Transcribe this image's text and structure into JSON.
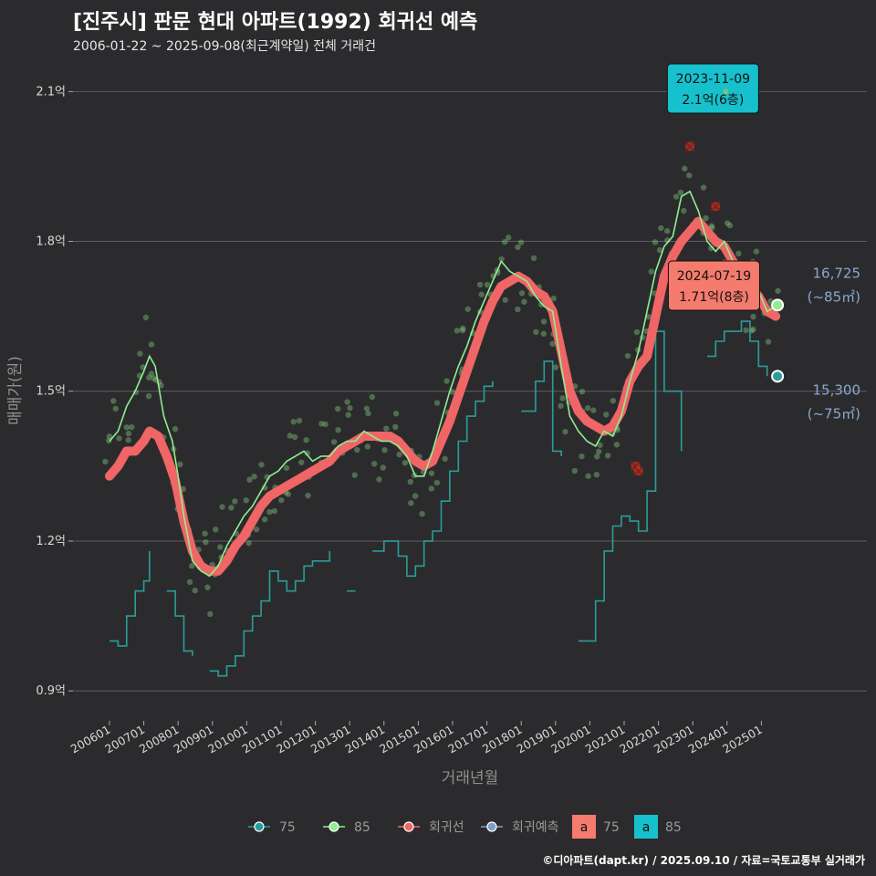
{
  "title": "[진주시] 판문 현대 아파트(1992) 회귀선 예측",
  "subtitle": "2006-01-22 ~ 2025-09-08(최근계약일) 전체 거래건",
  "caption": "©디아파트(dapt.kr) / 2025.09.10 / 자료=국토교통부 실거래가",
  "colors": {
    "background": "#2b2b2d",
    "s75": "#2a9d9a",
    "s85": "#90ee90",
    "regression": "#f06565",
    "prediction": "#7f9fc6",
    "callout_blue": "#16c0cc",
    "callout_red": "#f47b6d"
  },
  "chart_data": {
    "type": "line",
    "title": "[진주시] 판문 현대 아파트(1992) 회귀선 예측",
    "subtitle": "2006-01-22 ~ 2025-09-08(최근계약일) 전체 거래건",
    "xlabel": "거래년월",
    "ylabel": "매매가(원)",
    "y_unit": "억",
    "ylim": [
      0.84,
      2.17
    ],
    "xlim": [
      "2005-12",
      "2025-12"
    ],
    "grid": true,
    "y_ticks": [
      0.9,
      1.2,
      1.5,
      1.8,
      2.1
    ],
    "y_tick_labels": [
      "0.9억",
      "1.2억",
      "1.5억",
      "1.8억",
      "2.1억"
    ],
    "x_tick_labels": [
      "200601",
      "200701",
      "200801",
      "200901",
      "201001",
      "201101",
      "201201",
      "201301",
      "201401",
      "201501",
      "201601",
      "201701",
      "201801",
      "201901",
      "202001",
      "202101",
      "202201",
      "202301",
      "202401",
      "202501"
    ],
    "legend_position": "bottom",
    "legend": [
      {
        "label": "75",
        "type": "line-point",
        "color": "#2a9d9a"
      },
      {
        "label": "85",
        "type": "line-point",
        "color": "#90ee90"
      },
      {
        "label": "회귀선",
        "type": "line-point",
        "color": "#f06565"
      },
      {
        "label": "회귀예측",
        "type": "line-point",
        "color": "#7f9fc6"
      },
      {
        "label": "75",
        "type": "box",
        "box_text": "a",
        "color": "#f47b6d"
      },
      {
        "label": "85",
        "type": "box",
        "box_text": "a",
        "color": "#16c0cc"
      }
    ],
    "series": [
      {
        "name": "85",
        "color": "#90ee90",
        "points": [
          [
            "2006-01",
            1.4
          ],
          [
            "2006-04",
            1.42
          ],
          [
            "2006-07",
            1.47
          ],
          [
            "2006-10",
            1.5
          ],
          [
            "2007-01",
            1.54
          ],
          [
            "2007-03",
            1.57
          ],
          [
            "2007-05",
            1.55
          ],
          [
            "2007-08",
            1.45
          ],
          [
            "2007-11",
            1.4
          ],
          [
            "2008-01",
            1.33
          ],
          [
            "2008-03",
            1.25
          ],
          [
            "2008-06",
            1.16
          ],
          [
            "2008-09",
            1.14
          ],
          [
            "2008-12",
            1.13
          ],
          [
            "2009-03",
            1.15
          ],
          [
            "2009-06",
            1.19
          ],
          [
            "2009-09",
            1.22
          ],
          [
            "2009-12",
            1.25
          ],
          [
            "2010-03",
            1.27
          ],
          [
            "2010-06",
            1.3
          ],
          [
            "2010-09",
            1.33
          ],
          [
            "2010-12",
            1.34
          ],
          [
            "2011-03",
            1.36
          ],
          [
            "2011-06",
            1.37
          ],
          [
            "2011-09",
            1.38
          ],
          [
            "2011-12",
            1.36
          ],
          [
            "2012-03",
            1.37
          ],
          [
            "2012-06",
            1.37
          ],
          [
            "2012-09",
            1.39
          ],
          [
            "2012-12",
            1.4
          ],
          [
            "2013-03",
            1.4
          ],
          [
            "2013-06",
            1.42
          ],
          [
            "2013-09",
            1.41
          ],
          [
            "2013-12",
            1.4
          ],
          [
            "2014-03",
            1.4
          ],
          [
            "2014-06",
            1.39
          ],
          [
            "2014-09",
            1.37
          ],
          [
            "2014-12",
            1.33
          ],
          [
            "2015-03",
            1.33
          ],
          [
            "2015-06",
            1.38
          ],
          [
            "2015-09",
            1.44
          ],
          [
            "2015-12",
            1.5
          ],
          [
            "2016-03",
            1.55
          ],
          [
            "2016-06",
            1.59
          ],
          [
            "2016-09",
            1.64
          ],
          [
            "2016-12",
            1.68
          ],
          [
            "2017-03",
            1.72
          ],
          [
            "2017-06",
            1.76
          ],
          [
            "2017-09",
            1.74
          ],
          [
            "2017-12",
            1.73
          ],
          [
            "2018-03",
            1.72
          ],
          [
            "2018-06",
            1.69
          ],
          [
            "2018-09",
            1.67
          ],
          [
            "2018-12",
            1.66
          ],
          [
            "2019-03",
            1.55
          ],
          [
            "2019-06",
            1.45
          ],
          [
            "2019-09",
            1.42
          ],
          [
            "2019-12",
            1.4
          ],
          [
            "2020-03",
            1.39
          ],
          [
            "2020-06",
            1.42
          ],
          [
            "2020-09",
            1.41
          ],
          [
            "2020-12",
            1.45
          ],
          [
            "2021-03",
            1.52
          ],
          [
            "2021-06",
            1.58
          ],
          [
            "2021-09",
            1.66
          ],
          [
            "2021-12",
            1.74
          ],
          [
            "2022-03",
            1.79
          ],
          [
            "2022-06",
            1.81
          ],
          [
            "2022-09",
            1.89
          ],
          [
            "2022-12",
            1.9
          ],
          [
            "2023-03",
            1.86
          ],
          [
            "2023-06",
            1.8
          ],
          [
            "2023-09",
            1.78
          ],
          [
            "2023-12",
            1.8
          ],
          [
            "2024-03",
            1.76
          ],
          [
            "2024-06",
            1.74
          ],
          [
            "2024-09",
            1.7
          ],
          [
            "2024-12",
            1.7
          ],
          [
            "2025-03",
            1.66
          ],
          [
            "2025-06",
            1.67
          ]
        ]
      },
      {
        "name": "75",
        "color": "#2a9d9a",
        "points": [
          [
            "2006-01",
            1.0
          ],
          [
            "2006-04",
            0.99
          ],
          [
            "2006-07",
            1.05
          ],
          [
            "2006-10",
            1.1
          ],
          [
            "2007-01",
            1.12
          ],
          [
            "2007-03",
            1.18
          ],
          [
            "2007-06",
            null
          ],
          [
            "2007-09",
            1.1
          ],
          [
            "2007-12",
            1.05
          ],
          [
            "2008-03",
            0.98
          ],
          [
            "2008-06",
            0.97
          ],
          [
            "2008-09",
            null
          ],
          [
            "2008-12",
            0.94
          ],
          [
            "2009-03",
            0.93
          ],
          [
            "2009-06",
            0.95
          ],
          [
            "2009-09",
            0.97
          ],
          [
            "2009-12",
            1.02
          ],
          [
            "2010-03",
            1.05
          ],
          [
            "2010-06",
            1.08
          ],
          [
            "2010-09",
            1.14
          ],
          [
            "2010-12",
            1.12
          ],
          [
            "2011-03",
            1.1
          ],
          [
            "2011-06",
            1.12
          ],
          [
            "2011-09",
            1.15
          ],
          [
            "2011-12",
            1.16
          ],
          [
            "2012-03",
            1.16
          ],
          [
            "2012-06",
            1.18
          ],
          [
            "2012-09",
            null
          ],
          [
            "2012-12",
            1.1
          ],
          [
            "2013-03",
            1.1
          ],
          [
            "2013-06",
            null
          ],
          [
            "2013-09",
            1.18
          ],
          [
            "2014-01",
            1.2
          ],
          [
            "2014-06",
            1.17
          ],
          [
            "2014-09",
            1.13
          ],
          [
            "2014-12",
            1.15
          ],
          [
            "2015-03",
            1.2
          ],
          [
            "2015-06",
            1.22
          ],
          [
            "2015-09",
            1.28
          ],
          [
            "2015-12",
            1.34
          ],
          [
            "2016-03",
            1.4
          ],
          [
            "2016-06",
            1.45
          ],
          [
            "2016-09",
            1.48
          ],
          [
            "2016-12",
            1.51
          ],
          [
            "2017-03",
            1.52
          ],
          [
            "2017-06",
            null
          ],
          [
            "2018-01",
            1.46
          ],
          [
            "2018-06",
            1.52
          ],
          [
            "2018-09",
            1.56
          ],
          [
            "2018-12",
            1.38
          ],
          [
            "2019-03",
            1.37
          ],
          [
            "2019-06",
            null
          ],
          [
            "2019-09",
            1.0
          ],
          [
            "2019-12",
            1.0
          ],
          [
            "2020-03",
            1.08
          ],
          [
            "2020-06",
            1.18
          ],
          [
            "2020-09",
            1.23
          ],
          [
            "2020-12",
            1.25
          ],
          [
            "2021-03",
            1.24
          ],
          [
            "2021-06",
            1.22
          ],
          [
            "2021-09",
            1.3
          ],
          [
            "2021-12",
            1.62
          ],
          [
            "2022-03",
            1.5
          ],
          [
            "2022-06",
            1.5
          ],
          [
            "2022-09",
            1.38
          ],
          [
            "2022-12",
            null
          ],
          [
            "2023-06",
            1.57
          ],
          [
            "2023-09",
            1.6
          ],
          [
            "2023-12",
            1.62
          ],
          [
            "2024-03",
            1.62
          ],
          [
            "2024-06",
            1.64
          ],
          [
            "2024-09",
            1.6
          ],
          [
            "2024-12",
            1.55
          ],
          [
            "2025-03",
            1.53
          ]
        ]
      },
      {
        "name": "회귀선",
        "color": "#f06565",
        "points": [
          [
            "2006-01",
            1.33
          ],
          [
            "2006-04",
            1.35
          ],
          [
            "2006-07",
            1.38
          ],
          [
            "2006-10",
            1.38
          ],
          [
            "2007-01",
            1.4
          ],
          [
            "2007-03",
            1.42
          ],
          [
            "2007-06",
            1.41
          ],
          [
            "2007-09",
            1.37
          ],
          [
            "2007-12",
            1.32
          ],
          [
            "2008-03",
            1.24
          ],
          [
            "2008-06",
            1.18
          ],
          [
            "2008-09",
            1.15
          ],
          [
            "2008-12",
            1.14
          ],
          [
            "2009-03",
            1.14
          ],
          [
            "2009-06",
            1.16
          ],
          [
            "2009-09",
            1.19
          ],
          [
            "2009-12",
            1.21
          ],
          [
            "2010-03",
            1.24
          ],
          [
            "2010-06",
            1.27
          ],
          [
            "2010-09",
            1.29
          ],
          [
            "2010-12",
            1.3
          ],
          [
            "2011-03",
            1.31
          ],
          [
            "2011-06",
            1.32
          ],
          [
            "2011-09",
            1.33
          ],
          [
            "2011-12",
            1.34
          ],
          [
            "2012-03",
            1.35
          ],
          [
            "2012-06",
            1.36
          ],
          [
            "2012-09",
            1.38
          ],
          [
            "2012-12",
            1.39
          ],
          [
            "2013-03",
            1.4
          ],
          [
            "2013-06",
            1.41
          ],
          [
            "2013-09",
            1.41
          ],
          [
            "2013-12",
            1.41
          ],
          [
            "2014-03",
            1.41
          ],
          [
            "2014-06",
            1.4
          ],
          [
            "2014-09",
            1.38
          ],
          [
            "2014-12",
            1.36
          ],
          [
            "2015-03",
            1.35
          ],
          [
            "2015-06",
            1.36
          ],
          [
            "2015-09",
            1.4
          ],
          [
            "2015-12",
            1.44
          ],
          [
            "2016-03",
            1.49
          ],
          [
            "2016-06",
            1.54
          ],
          [
            "2016-09",
            1.59
          ],
          [
            "2016-12",
            1.64
          ],
          [
            "2017-03",
            1.68
          ],
          [
            "2017-06",
            1.71
          ],
          [
            "2017-09",
            1.72
          ],
          [
            "2017-12",
            1.73
          ],
          [
            "2018-03",
            1.72
          ],
          [
            "2018-06",
            1.7
          ],
          [
            "2018-09",
            1.69
          ],
          [
            "2018-12",
            1.66
          ],
          [
            "2019-03",
            1.58
          ],
          [
            "2019-06",
            1.5
          ],
          [
            "2019-09",
            1.46
          ],
          [
            "2019-12",
            1.44
          ],
          [
            "2020-03",
            1.43
          ],
          [
            "2020-06",
            1.42
          ],
          [
            "2020-09",
            1.43
          ],
          [
            "2020-12",
            1.46
          ],
          [
            "2021-03",
            1.52
          ],
          [
            "2021-06",
            1.55
          ],
          [
            "2021-09",
            1.57
          ],
          [
            "2021-12",
            1.65
          ],
          [
            "2022-03",
            1.73
          ],
          [
            "2022-06",
            1.77
          ],
          [
            "2022-09",
            1.8
          ],
          [
            "2022-12",
            1.82
          ],
          [
            "2023-03",
            1.84
          ],
          [
            "2023-06",
            1.82
          ],
          [
            "2023-09",
            1.8
          ],
          [
            "2023-12",
            1.79
          ],
          [
            "2024-03",
            1.76
          ],
          [
            "2024-06",
            1.74
          ],
          [
            "2024-09",
            1.71
          ],
          [
            "2024-12",
            1.69
          ],
          [
            "2025-03",
            1.66
          ],
          [
            "2025-06",
            1.65
          ]
        ]
      }
    ],
    "highlight_points": [
      {
        "label": "16,725\n(~85㎡)",
        "date": "2025-06",
        "value": 1.6725,
        "series": "85"
      },
      {
        "label": "15,300\n(~75㎡)",
        "date": "2025-06",
        "value": 1.53,
        "series": "75"
      }
    ],
    "annotations": [
      {
        "date": "2023-11-09",
        "text": "2023-11-09",
        "subtext": "2.1억(6층)",
        "value": 2.1,
        "style": "blue"
      },
      {
        "date": "2024-07-19",
        "text": "2024-07-19",
        "subtext": "1.71억(8층)",
        "value": 1.71,
        "style": "red"
      }
    ],
    "outliers_x": [
      {
        "date": "2022-12",
        "value": 1.99
      },
      {
        "date": "2023-09",
        "value": 1.87
      },
      {
        "date": "2021-05",
        "value": 1.35
      },
      {
        "date": "2021-06",
        "value": 1.34
      }
    ]
  }
}
